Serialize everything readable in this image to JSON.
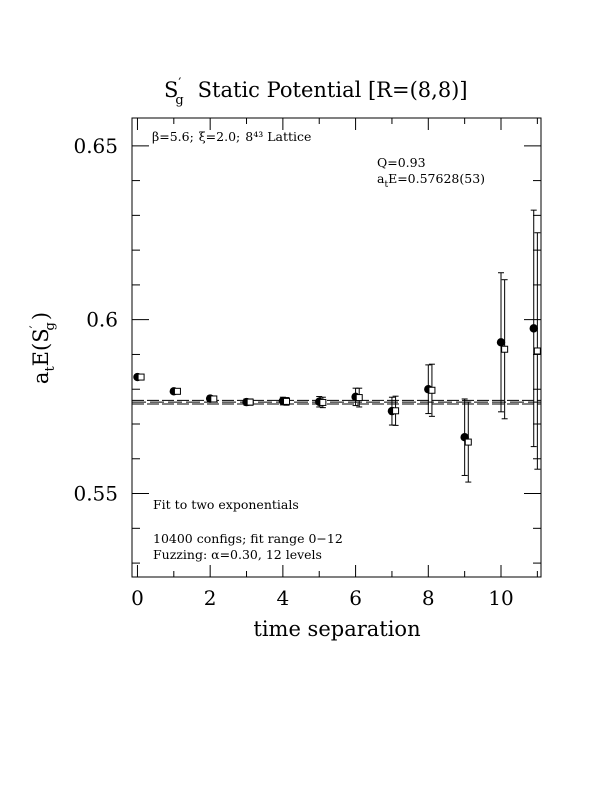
{
  "chart_data": {
    "type": "scatter",
    "title": "Static Potential [R=(8,8)]",
    "title_operator": "S",
    "title_operator_prime": "′",
    "title_operator_sub": "g",
    "xlabel": "time separation",
    "ylabel_prefix": "a",
    "ylabel_prefix_sub": "t",
    "ylabel_main": "E(S",
    "ylabel_prime": "′",
    "ylabel_sub": "g",
    "ylabel_close": ")",
    "xlim": [
      -0.15,
      11.1
    ],
    "ylim": [
      0.526,
      0.658
    ],
    "x_ticks": [
      0,
      2,
      4,
      6,
      8,
      10
    ],
    "x_tick_labels": [
      "0",
      "2",
      "4",
      "6",
      "8",
      "10"
    ],
    "y_ticks": [
      0.55,
      0.6,
      0.65
    ],
    "y_tick_labels": [
      "0.55",
      "0.6",
      "0.65"
    ],
    "lattice_info": {
      "beta": "β=5.6;",
      "xi": "ξ=2.0;",
      "lattice": "8⁴³ Lattice"
    },
    "fit_q": "Q=0.93",
    "fit_energy_prefix": "a",
    "fit_energy_sub": "t",
    "fit_energy_value": "E=0.57628(53)",
    "notes": {
      "fit_type": "Fit to two exponentials",
      "configs": "10400 configs; fit range 0−12",
      "fuzzing": "Fuzzing: α=0.30, 12 levels"
    },
    "fit_band": {
      "center": 0.57628,
      "error": 0.00053
    },
    "series": [
      {
        "marker": "filled-circle",
        "points": [
          {
            "x": 0,
            "y": 0.5835,
            "err": 0.0004
          },
          {
            "x": 1,
            "y": 0.5794,
            "err": 0.0006
          },
          {
            "x": 2,
            "y": 0.5773,
            "err": 0.0008
          },
          {
            "x": 3,
            "y": 0.5763,
            "err": 0.0009
          },
          {
            "x": 4,
            "y": 0.5766,
            "err": 0.0011
          },
          {
            "x": 5,
            "y": 0.5764,
            "err": 0.0015
          },
          {
            "x": 6,
            "y": 0.5778,
            "err": 0.0025
          },
          {
            "x": 7,
            "y": 0.5737,
            "err": 0.004
          },
          {
            "x": 8,
            "y": 0.58,
            "err": 0.007
          },
          {
            "x": 9,
            "y": 0.5662,
            "err": 0.011
          },
          {
            "x": 10,
            "y": 0.5935,
            "err": 0.02
          },
          {
            "x": 10.9,
            "y": 0.5975,
            "err": 0.034
          }
        ]
      },
      {
        "marker": "open-square",
        "points": [
          {
            "x": 0.1,
            "y": 0.5835,
            "err": 0.0004
          },
          {
            "x": 1.1,
            "y": 0.5794,
            "err": 0.0006
          },
          {
            "x": 2.1,
            "y": 0.5772,
            "err": 0.0008
          },
          {
            "x": 3.1,
            "y": 0.5763,
            "err": 0.0009
          },
          {
            "x": 4.1,
            "y": 0.5765,
            "err": 0.0011
          },
          {
            "x": 5.1,
            "y": 0.5762,
            "err": 0.0015
          },
          {
            "x": 6.1,
            "y": 0.5776,
            "err": 0.0027
          },
          {
            "x": 7.1,
            "y": 0.5738,
            "err": 0.0042
          },
          {
            "x": 8.1,
            "y": 0.5797,
            "err": 0.0075
          },
          {
            "x": 9.1,
            "y": 0.5648,
            "err": 0.0115
          },
          {
            "x": 10.1,
            "y": 0.5915,
            "err": 0.02
          },
          {
            "x": 11.0,
            "y": 0.591,
            "err": 0.034
          }
        ]
      }
    ]
  }
}
